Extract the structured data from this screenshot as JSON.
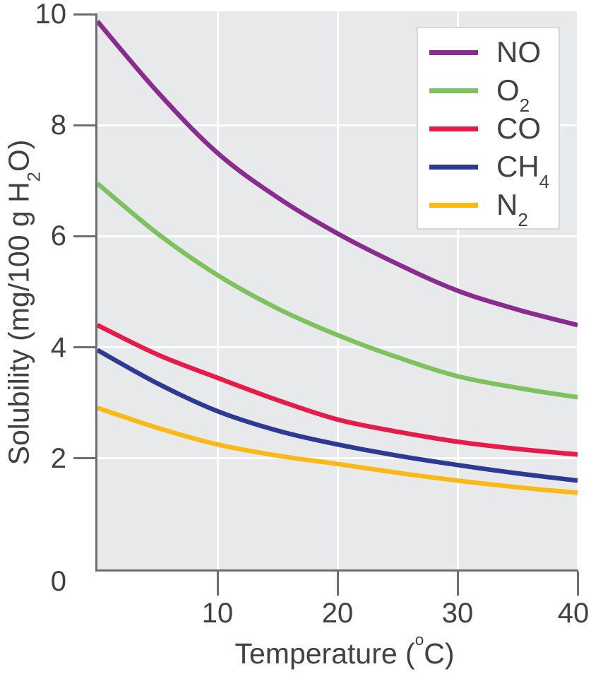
{
  "chart_data": {
    "type": "line",
    "title": "",
    "xlabel": "Temperature (°C)",
    "ylabel": "Solubility (mg/100 g H2O)",
    "x": [
      0,
      5,
      10,
      15,
      20,
      25,
      30,
      35,
      40
    ],
    "xlim": [
      0,
      40
    ],
    "ylim": [
      0,
      10
    ],
    "grid": "white gridlines on light gray panel; vertical at x=10,20,30,40; horizontal at y=2,4,6,8",
    "legend_position": "top-right inside plot, white box",
    "series": [
      {
        "name": "NO",
        "color": "#8a2b8f",
        "values": [
          9.87,
          8.6,
          7.5,
          6.7,
          6.05,
          5.5,
          5.02,
          4.68,
          4.4
        ]
      },
      {
        "name": "O2",
        "color": "#7dc25f",
        "values": [
          6.95,
          6.05,
          5.3,
          4.7,
          4.22,
          3.82,
          3.48,
          3.27,
          3.1
        ]
      },
      {
        "name": "CO",
        "color": "#e71b4a",
        "values": [
          4.4,
          3.87,
          3.45,
          3.05,
          2.7,
          2.48,
          2.3,
          2.17,
          2.07
        ]
      },
      {
        "name": "CH4",
        "color": "#2d3a93",
        "values": [
          3.95,
          3.35,
          2.85,
          2.5,
          2.25,
          2.05,
          1.88,
          1.73,
          1.6
        ]
      },
      {
        "name": "N2",
        "color": "#fbb917",
        "values": [
          2.91,
          2.55,
          2.25,
          2.05,
          1.9,
          1.74,
          1.6,
          1.48,
          1.38
        ]
      }
    ]
  },
  "axes": {
    "y": {
      "title_parts": [
        {
          "t": "Solubility (mg/100 g H"
        },
        {
          "t": "2",
          "sub": true
        },
        {
          "t": "O)"
        }
      ],
      "ticks": [
        {
          "value": 10,
          "label": "10",
          "tick": true,
          "grid": false
        },
        {
          "value": 8,
          "label": "8",
          "tick": true,
          "grid": true
        },
        {
          "value": 6,
          "label": "6",
          "tick": true,
          "grid": true
        },
        {
          "value": 4,
          "label": "4",
          "tick": true,
          "grid": true
        },
        {
          "value": 2,
          "label": "2",
          "tick": true,
          "grid": true
        },
        {
          "value": 0,
          "label": "0",
          "tick": false,
          "grid": false
        }
      ]
    },
    "x": {
      "title_parts": [
        {
          "t": "Temperature ("
        },
        {
          "t": "o",
          "sup": true
        },
        {
          "t": "C)"
        }
      ],
      "ticks": [
        {
          "value": 10,
          "label": "10",
          "tick": true,
          "grid": true,
          "dx": 0
        },
        {
          "value": 20,
          "label": "20",
          "tick": true,
          "grid": true,
          "dx": 0
        },
        {
          "value": 30,
          "label": "30",
          "tick": true,
          "grid": true,
          "dx": 0
        },
        {
          "value": 40,
          "label": "40",
          "tick": true,
          "grid": true,
          "dx": -6
        }
      ]
    }
  },
  "legend": {
    "items": [
      {
        "main": "NO",
        "sub": "",
        "series": "NO"
      },
      {
        "main": "O",
        "sub": "2",
        "series": "O2"
      },
      {
        "main": "CO",
        "sub": "",
        "series": "CO"
      },
      {
        "main": "CH",
        "sub": "4",
        "series": "CH4"
      },
      {
        "main": "N",
        "sub": "2",
        "series": "N2"
      }
    ]
  },
  "colors": {
    "plot_background": "#e8e9ea",
    "gridline": "#ffffff",
    "axis": "#6d6e70",
    "text": "#414042",
    "legend_border": "#d7d8da",
    "legend_background": "#ffffff"
  }
}
